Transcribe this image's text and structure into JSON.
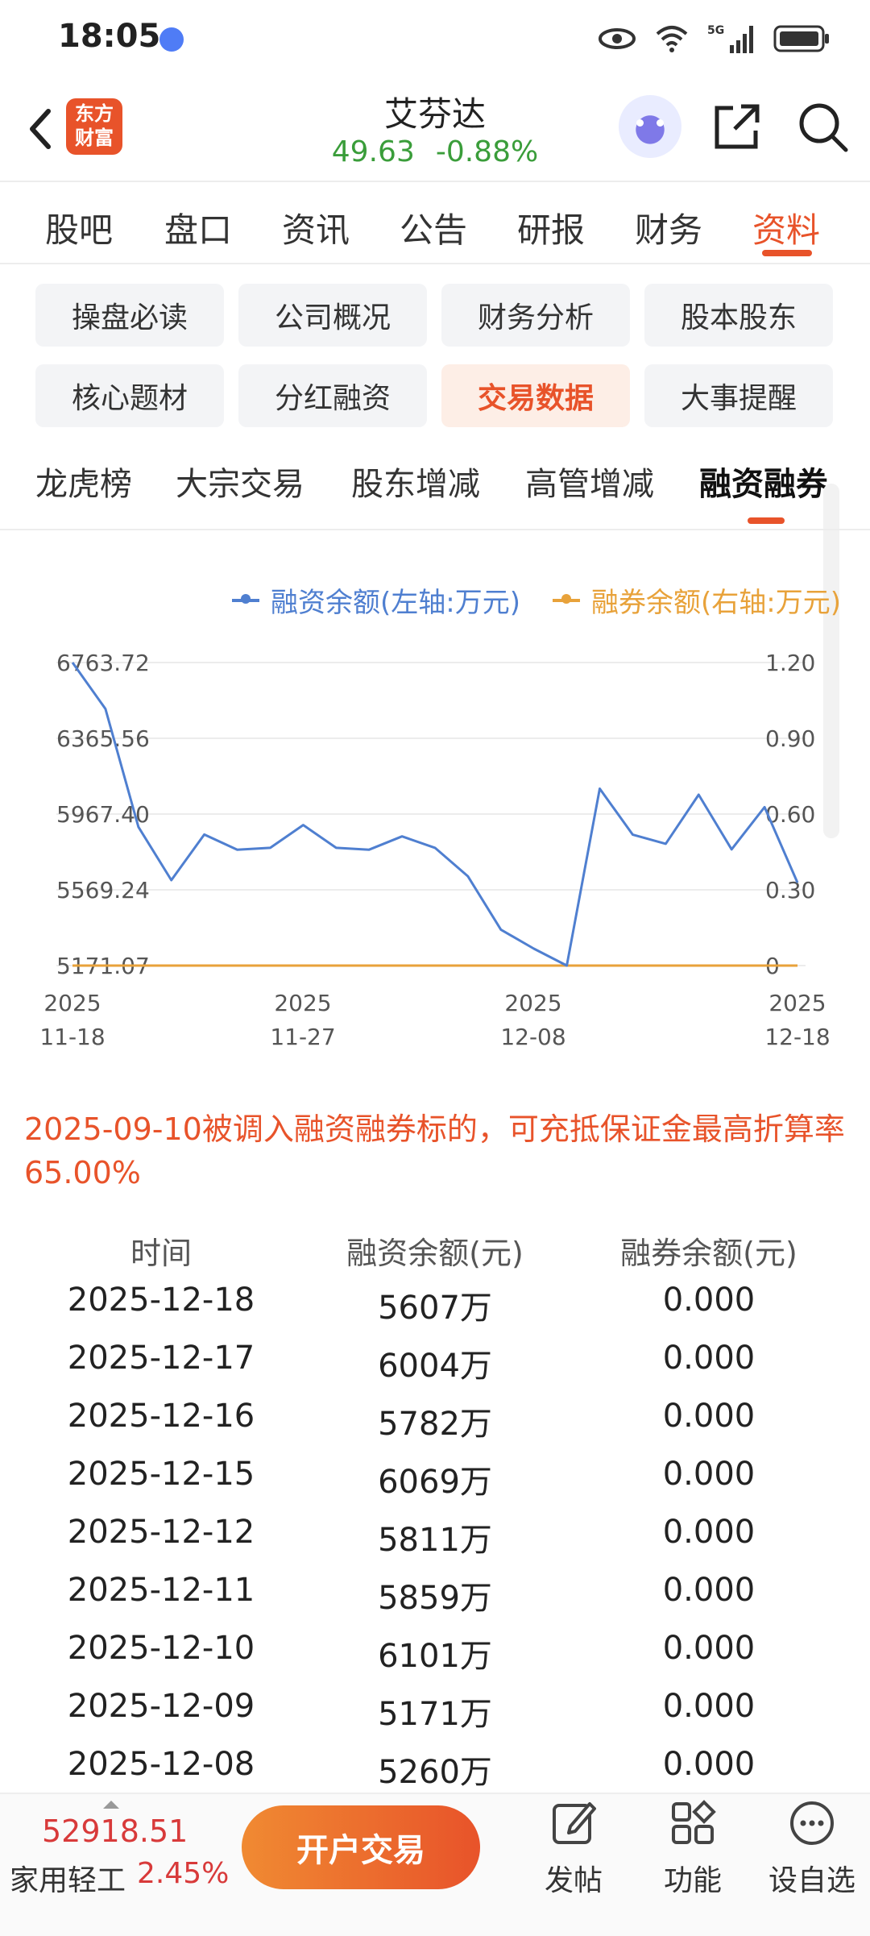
{
  "status": {
    "time": "18:05"
  },
  "header": {
    "logo_line1": "东方",
    "logo_line2": "财富",
    "stock_name": "艾芬达",
    "price": "49.63",
    "change": "-0.88%"
  },
  "main_tabs": [
    "股吧",
    "盘口",
    "资讯",
    "公告",
    "研报",
    "财务",
    "资料"
  ],
  "sub_grid": [
    "操盘必读",
    "公司概况",
    "财务分析",
    "股本股东",
    "核心题材",
    "分红融资",
    "交易数据",
    "大事提醒"
  ],
  "sub_tabs": [
    "龙虎榜",
    "大宗交易",
    "股东增减",
    "高管增减",
    "融资融券"
  ],
  "chart_data": {
    "type": "line",
    "legend": [
      "融资余额(左轴:万元)",
      "融券余额(右轴:万元)"
    ],
    "left_ticks": [
      "6763.72",
      "6365.56",
      "5967.40",
      "5569.24",
      "5171.07"
    ],
    "right_ticks": [
      "1.20",
      "0.90",
      "0.60",
      "0.30",
      "0"
    ],
    "left_ylim": [
      5171.07,
      6763.72
    ],
    "right_ylim": [
      0,
      1.2
    ],
    "x_labels": [
      {
        "year": "2025",
        "date": "11-18"
      },
      {
        "year": "2025",
        "date": "11-27"
      },
      {
        "year": "2025",
        "date": "12-08"
      },
      {
        "year": "2025",
        "date": "12-18"
      }
    ],
    "series": [
      {
        "name": "融资余额(左轴:万元)",
        "color": "#4f7fd0",
        "values": [
          6763.72,
          6520,
          5900,
          5620,
          5860,
          5780,
          5790,
          5910,
          5790,
          5780,
          5850,
          5790,
          5640,
          5360,
          5260,
          5171.07,
          6101,
          5859,
          5811,
          6069,
          5782,
          6004,
          5607
        ]
      },
      {
        "name": "融券余额(右轴:万元)",
        "color": "#e8a23a",
        "values": [
          0,
          0,
          0,
          0,
          0,
          0,
          0,
          0,
          0,
          0,
          0,
          0,
          0,
          0,
          0,
          0,
          0,
          0,
          0,
          0,
          0,
          0,
          0
        ]
      }
    ]
  },
  "note": "2025-09-10被调入融资融券标的，可充抵保证金最高折算率65.00%",
  "table": {
    "headers": [
      "时间",
      "融资余额(元)",
      "融券余额(元)"
    ],
    "rows": [
      [
        "2025-12-18",
        "5607万",
        "0.000"
      ],
      [
        "2025-12-17",
        "6004万",
        "0.000"
      ],
      [
        "2025-12-16",
        "5782万",
        "0.000"
      ],
      [
        "2025-12-15",
        "6069万",
        "0.000"
      ],
      [
        "2025-12-12",
        "5811万",
        "0.000"
      ],
      [
        "2025-12-11",
        "5859万",
        "0.000"
      ],
      [
        "2025-12-10",
        "6101万",
        "0.000"
      ],
      [
        "2025-12-09",
        "5171万",
        "0.000"
      ],
      [
        "2025-12-08",
        "5260万",
        "0.000"
      ]
    ]
  },
  "bottom": {
    "index_value": "52918.51",
    "index_name": "家用轻工",
    "index_change": "2.45%",
    "trade_label": "开户交易",
    "post_label": "发帖",
    "function_label": "功能",
    "watchlist_label": "设自选"
  }
}
